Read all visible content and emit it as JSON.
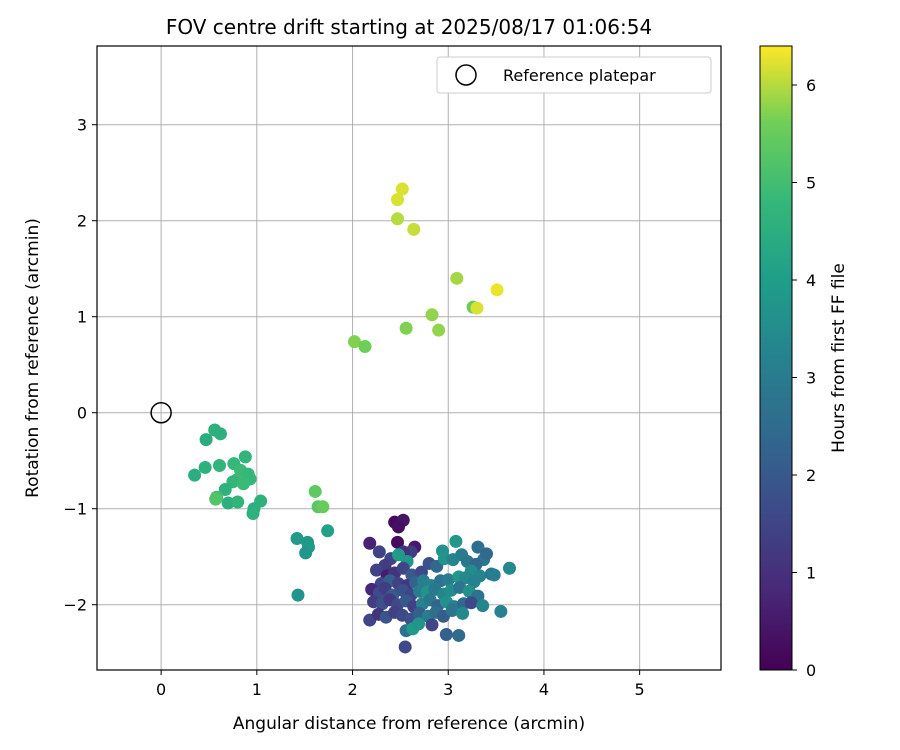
{
  "chart_data": {
    "type": "scatter",
    "title": "FOV centre drift starting at 2025/08/17 01:06:54",
    "xlabel": "Angular distance from reference (arcmin)",
    "ylabel": "Rotation from reference (arcmin)",
    "xlim": [
      -0.67,
      5.85
    ],
    "ylim": [
      -2.68,
      3.82
    ],
    "x_ticks": [
      0,
      1,
      2,
      3,
      4,
      5
    ],
    "y_ticks": [
      -2,
      -1,
      0,
      1,
      2,
      3
    ],
    "x_tick_labels": [
      "0",
      "1",
      "2",
      "3",
      "4",
      "5"
    ],
    "y_tick_labels": [
      "−2",
      "−1",
      "0",
      "1",
      "2",
      "3"
    ],
    "grid": true,
    "legend": {
      "placement": "top-right",
      "entries": [
        "Reference platepar"
      ]
    },
    "reference_point": {
      "x": 0,
      "y": 0,
      "label": "Reference platepar"
    },
    "colorbar": {
      "label": "Hours from first FF file",
      "colormap": "viridis",
      "range": [
        0,
        6.4
      ],
      "ticks": [
        0,
        1,
        2,
        3,
        4,
        5,
        6
      ],
      "tick_labels": [
        "0",
        "1",
        "2",
        "3",
        "4",
        "5",
        "6"
      ]
    },
    "points": [
      {
        "x": 2.52,
        "y": 2.33,
        "h": 6.2
      },
      {
        "x": 2.47,
        "y": 2.22,
        "h": 6.2
      },
      {
        "x": 2.47,
        "y": 2.02,
        "h": 6.0
      },
      {
        "x": 2.64,
        "y": 1.91,
        "h": 6.1
      },
      {
        "x": 3.09,
        "y": 1.4,
        "h": 5.9
      },
      {
        "x": 3.51,
        "y": 1.28,
        "h": 6.3
      },
      {
        "x": 3.26,
        "y": 1.1,
        "h": 5.5
      },
      {
        "x": 3.3,
        "y": 1.09,
        "h": 6.2
      },
      {
        "x": 2.83,
        "y": 1.02,
        "h": 5.8
      },
      {
        "x": 2.56,
        "y": 0.88,
        "h": 5.7
      },
      {
        "x": 2.9,
        "y": 0.86,
        "h": 5.8
      },
      {
        "x": 2.02,
        "y": 0.74,
        "h": 5.7
      },
      {
        "x": 2.13,
        "y": 0.69,
        "h": 5.6
      },
      {
        "x": 0.56,
        "y": -0.18,
        "h": 4.6
      },
      {
        "x": 0.62,
        "y": -0.22,
        "h": 4.5
      },
      {
        "x": 0.47,
        "y": -0.28,
        "h": 4.4
      },
      {
        "x": 0.88,
        "y": -0.46,
        "h": 4.7
      },
      {
        "x": 0.76,
        "y": -0.53,
        "h": 4.8
      },
      {
        "x": 0.46,
        "y": -0.57,
        "h": 4.6
      },
      {
        "x": 0.61,
        "y": -0.55,
        "h": 4.7
      },
      {
        "x": 0.83,
        "y": -0.6,
        "h": 4.9
      },
      {
        "x": 0.35,
        "y": -0.65,
        "h": 4.5
      },
      {
        "x": 0.91,
        "y": -0.64,
        "h": 4.8
      },
      {
        "x": 0.79,
        "y": -0.7,
        "h": 4.9
      },
      {
        "x": 0.93,
        "y": -0.69,
        "h": 4.8
      },
      {
        "x": 0.75,
        "y": -0.72,
        "h": 4.7
      },
      {
        "x": 0.86,
        "y": -0.74,
        "h": 4.9
      },
      {
        "x": 0.67,
        "y": -0.8,
        "h": 4.6
      },
      {
        "x": 0.58,
        "y": -0.88,
        "h": 5.0
      },
      {
        "x": 0.57,
        "y": -0.9,
        "h": 5.2
      },
      {
        "x": 0.7,
        "y": -0.94,
        "h": 4.5
      },
      {
        "x": 0.8,
        "y": -0.93,
        "h": 4.7
      },
      {
        "x": 1.04,
        "y": -0.92,
        "h": 4.6
      },
      {
        "x": 0.97,
        "y": -1.0,
        "h": 4.5
      },
      {
        "x": 0.96,
        "y": -1.05,
        "h": 4.6
      },
      {
        "x": 1.61,
        "y": -0.82,
        "h": 5.4
      },
      {
        "x": 1.64,
        "y": -0.98,
        "h": 5.3
      },
      {
        "x": 1.69,
        "y": -0.98,
        "h": 5.5
      },
      {
        "x": 1.74,
        "y": -1.23,
        "h": 4.1
      },
      {
        "x": 1.42,
        "y": -1.31,
        "h": 3.9
      },
      {
        "x": 1.53,
        "y": -1.35,
        "h": 3.8
      },
      {
        "x": 1.54,
        "y": -1.4,
        "h": 3.9
      },
      {
        "x": 1.51,
        "y": -1.46,
        "h": 3.8
      },
      {
        "x": 1.43,
        "y": -1.9,
        "h": 3.7
      },
      {
        "x": 2.44,
        "y": -1.14,
        "h": 0.2
      },
      {
        "x": 2.53,
        "y": -1.12,
        "h": 0.4
      },
      {
        "x": 2.48,
        "y": -1.19,
        "h": 0.3
      },
      {
        "x": 2.47,
        "y": -1.35,
        "h": 0.2
      },
      {
        "x": 2.65,
        "y": -1.4,
        "h": 0.5
      },
      {
        "x": 2.61,
        "y": -1.45,
        "h": 1.3
      },
      {
        "x": 2.53,
        "y": -1.45,
        "h": 1.0
      },
      {
        "x": 2.18,
        "y": -1.36,
        "h": 0.7
      },
      {
        "x": 2.28,
        "y": -1.45,
        "h": 1.4
      },
      {
        "x": 2.4,
        "y": -1.52,
        "h": 1.5
      },
      {
        "x": 2.48,
        "y": -1.48,
        "h": 3.9
      },
      {
        "x": 2.57,
        "y": -1.55,
        "h": 3.8
      },
      {
        "x": 2.34,
        "y": -1.59,
        "h": 1.3
      },
      {
        "x": 2.25,
        "y": -1.64,
        "h": 1.4
      },
      {
        "x": 2.36,
        "y": -1.7,
        "h": 0.6
      },
      {
        "x": 2.44,
        "y": -1.67,
        "h": 1.1
      },
      {
        "x": 2.53,
        "y": -1.62,
        "h": 1.5
      },
      {
        "x": 2.62,
        "y": -1.69,
        "h": 2.0
      },
      {
        "x": 2.72,
        "y": -1.66,
        "h": 1.6
      },
      {
        "x": 2.8,
        "y": -1.57,
        "h": 1.8
      },
      {
        "x": 2.88,
        "y": -1.6,
        "h": 2.4
      },
      {
        "x": 2.94,
        "y": -1.44,
        "h": 3.6
      },
      {
        "x": 2.96,
        "y": -1.52,
        "h": 3.7
      },
      {
        "x": 3.05,
        "y": -1.53,
        "h": 3.3
      },
      {
        "x": 3.08,
        "y": -1.34,
        "h": 3.8
      },
      {
        "x": 3.14,
        "y": -1.48,
        "h": 3.0
      },
      {
        "x": 3.2,
        "y": -1.55,
        "h": 2.9
      },
      {
        "x": 3.31,
        "y": -1.4,
        "h": 2.6
      },
      {
        "x": 3.37,
        "y": -1.53,
        "h": 2.8
      },
      {
        "x": 3.4,
        "y": -1.47,
        "h": 2.5
      },
      {
        "x": 3.29,
        "y": -1.58,
        "h": 2.4
      },
      {
        "x": 3.24,
        "y": -1.65,
        "h": 3.5
      },
      {
        "x": 3.33,
        "y": -1.7,
        "h": 3.3
      },
      {
        "x": 3.45,
        "y": -1.68,
        "h": 2.9
      },
      {
        "x": 3.48,
        "y": -1.69,
        "h": 3.1
      },
      {
        "x": 3.64,
        "y": -1.62,
        "h": 3.4
      },
      {
        "x": 2.3,
        "y": -1.78,
        "h": 1.6
      },
      {
        "x": 2.39,
        "y": -1.75,
        "h": 2.2
      },
      {
        "x": 2.48,
        "y": -1.78,
        "h": 1.4
      },
      {
        "x": 2.57,
        "y": -1.8,
        "h": 1.2
      },
      {
        "x": 2.66,
        "y": -1.77,
        "h": 2.3
      },
      {
        "x": 2.74,
        "y": -1.75,
        "h": 3.1
      },
      {
        "x": 2.82,
        "y": -1.8,
        "h": 3.2
      },
      {
        "x": 2.92,
        "y": -1.75,
        "h": 2.7
      },
      {
        "x": 3.0,
        "y": -1.74,
        "h": 3.0
      },
      {
        "x": 3.11,
        "y": -1.71,
        "h": 3.8
      },
      {
        "x": 3.18,
        "y": -1.72,
        "h": 3.4
      },
      {
        "x": 3.27,
        "y": -1.76,
        "h": 3.2
      },
      {
        "x": 2.2,
        "y": -1.84,
        "h": 0.8
      },
      {
        "x": 2.28,
        "y": -1.88,
        "h": 1.7
      },
      {
        "x": 2.34,
        "y": -1.83,
        "h": 1.3
      },
      {
        "x": 2.42,
        "y": -1.9,
        "h": 2.1
      },
      {
        "x": 2.52,
        "y": -1.85,
        "h": 1.8
      },
      {
        "x": 2.61,
        "y": -1.9,
        "h": 1.5
      },
      {
        "x": 2.7,
        "y": -1.86,
        "h": 3.0
      },
      {
        "x": 2.78,
        "y": -1.87,
        "h": 3.7
      },
      {
        "x": 2.86,
        "y": -1.84,
        "h": 2.9
      },
      {
        "x": 2.95,
        "y": -1.89,
        "h": 3.3
      },
      {
        "x": 3.03,
        "y": -1.85,
        "h": 3.5
      },
      {
        "x": 3.12,
        "y": -1.82,
        "h": 2.8
      },
      {
        "x": 3.22,
        "y": -1.86,
        "h": 3.6
      },
      {
        "x": 3.31,
        "y": -1.91,
        "h": 2.7
      },
      {
        "x": 2.22,
        "y": -1.97,
        "h": 1.3
      },
      {
        "x": 2.31,
        "y": -1.99,
        "h": 1.8
      },
      {
        "x": 2.39,
        "y": -1.95,
        "h": 1.2
      },
      {
        "x": 2.47,
        "y": -2.0,
        "h": 1.6
      },
      {
        "x": 2.56,
        "y": -1.96,
        "h": 2.0
      },
      {
        "x": 2.64,
        "y": -2.02,
        "h": 1.4
      },
      {
        "x": 2.73,
        "y": -1.99,
        "h": 3.2
      },
      {
        "x": 2.81,
        "y": -1.95,
        "h": 2.9
      },
      {
        "x": 2.89,
        "y": -2.01,
        "h": 2.3
      },
      {
        "x": 2.98,
        "y": -1.97,
        "h": 3.6
      },
      {
        "x": 3.06,
        "y": -2.02,
        "h": 3.1
      },
      {
        "x": 3.16,
        "y": -1.99,
        "h": 2.4
      },
      {
        "x": 3.24,
        "y": -1.98,
        "h": 1.6
      },
      {
        "x": 3.36,
        "y": -2.01,
        "h": 3.3
      },
      {
        "x": 2.18,
        "y": -2.16,
        "h": 1.5
      },
      {
        "x": 2.27,
        "y": -2.1,
        "h": 1.1
      },
      {
        "x": 2.35,
        "y": -2.13,
        "h": 1.9
      },
      {
        "x": 2.44,
        "y": -2.08,
        "h": 1.4
      },
      {
        "x": 2.52,
        "y": -2.11,
        "h": 1.6
      },
      {
        "x": 2.61,
        "y": -2.15,
        "h": 1.8
      },
      {
        "x": 2.7,
        "y": -2.09,
        "h": 2.2
      },
      {
        "x": 2.79,
        "y": -2.12,
        "h": 3.0
      },
      {
        "x": 2.87,
        "y": -2.08,
        "h": 2.6
      },
      {
        "x": 2.95,
        "y": -2.12,
        "h": 2.1
      },
      {
        "x": 3.04,
        "y": -2.06,
        "h": 2.8
      },
      {
        "x": 3.15,
        "y": -2.09,
        "h": 3.4
      },
      {
        "x": 3.55,
        "y": -2.07,
        "h": 3.2
      },
      {
        "x": 2.56,
        "y": -2.27,
        "h": 2.7
      },
      {
        "x": 2.63,
        "y": -2.25,
        "h": 3.9
      },
      {
        "x": 2.69,
        "y": -2.2,
        "h": 3.7
      },
      {
        "x": 2.83,
        "y": -2.21,
        "h": 1.5
      },
      {
        "x": 2.98,
        "y": -2.31,
        "h": 2.2
      },
      {
        "x": 3.11,
        "y": -2.32,
        "h": 2.5
      },
      {
        "x": 2.55,
        "y": -2.44,
        "h": 1.6
      }
    ]
  }
}
